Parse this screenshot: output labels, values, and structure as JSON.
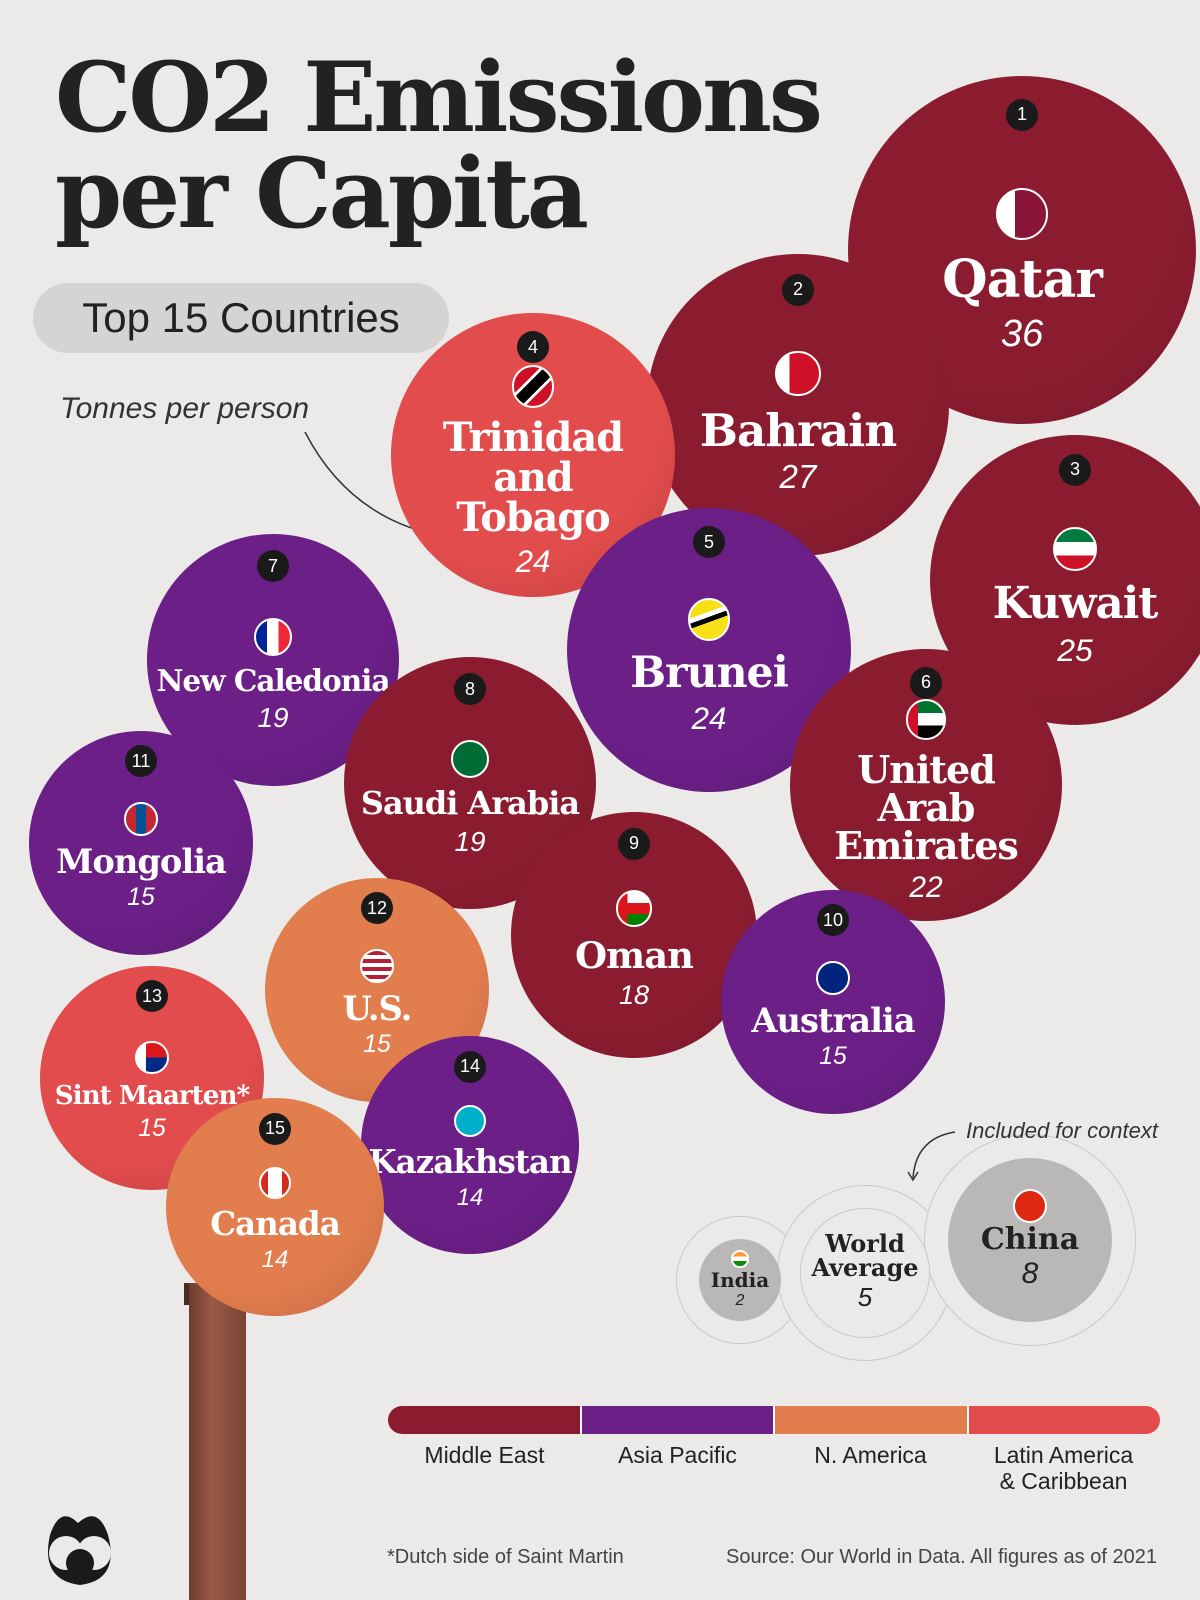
{
  "title_line1": "CO2 Emissions",
  "title_line2": "per Capita",
  "subtitle": "Top 15 Countries",
  "unit_note": "Tonnes per person",
  "context_note": "Included for context",
  "colors": {
    "Middle East": "#8b1c30",
    "Asia Pacific": "#6b1f87",
    "N. America": "#e27d4e",
    "Latin America & Caribbean": "#e24c4c",
    "context": "#b9b8b6",
    "background": "#ebeae8"
  },
  "chart_data": {
    "type": "bubble",
    "unit": "Tonnes per person",
    "countries": [
      {
        "rank": "1",
        "name": "Qatar",
        "value": 36,
        "region": "Middle East",
        "flag": "qatar-flag"
      },
      {
        "rank": "2",
        "name": "Bahrain",
        "value": 27,
        "region": "Middle East",
        "flag": "bahrain-flag"
      },
      {
        "rank": "3",
        "name": "Kuwait",
        "value": 25,
        "region": "Middle East",
        "flag": "kuwait-flag"
      },
      {
        "rank": "4",
        "name": "Trinidad and Tobago",
        "value": 24,
        "region": "Latin America & Caribbean",
        "flag": "trinidad-flag"
      },
      {
        "rank": "5",
        "name": "Brunei",
        "value": 24,
        "region": "Asia Pacific",
        "flag": "brunei-flag"
      },
      {
        "rank": "6",
        "name": "United Arab Emirates",
        "value": 22,
        "region": "Middle East",
        "flag": "uae-flag"
      },
      {
        "rank": "7",
        "name": "New Caledonia",
        "value": 19,
        "region": "Asia Pacific",
        "flag": "france-flag"
      },
      {
        "rank": "8",
        "name": "Saudi Arabia",
        "value": 19,
        "region": "Middle East",
        "flag": "saudi-flag"
      },
      {
        "rank": "9",
        "name": "Oman",
        "value": 18,
        "region": "Middle East",
        "flag": "oman-flag"
      },
      {
        "rank": "10",
        "name": "Australia",
        "value": 15,
        "region": "Asia Pacific",
        "flag": "australia-flag"
      },
      {
        "rank": "11",
        "name": "Mongolia",
        "value": 15,
        "region": "Asia Pacific",
        "flag": "mongolia-flag"
      },
      {
        "rank": "12",
        "name": "U.S.",
        "value": 15,
        "region": "N. America",
        "flag": "us-flag"
      },
      {
        "rank": "13",
        "name": "Sint Maarten*",
        "value": 15,
        "region": "Latin America & Caribbean",
        "flag": "sint-maarten-flag"
      },
      {
        "rank": "14",
        "name": "Kazakhstan",
        "value": 14,
        "region": "Asia Pacific",
        "flag": "kazakhstan-flag"
      },
      {
        "rank": "15",
        "name": "Canada",
        "value": 14,
        "region": "N. America",
        "flag": "canada-flag"
      }
    ],
    "context": [
      {
        "name": "India",
        "value": 2,
        "flag": "india-flag"
      },
      {
        "name": "World Average",
        "value": 5
      },
      {
        "name": "China",
        "value": 8,
        "flag": "china-flag"
      }
    ],
    "legend": [
      "Middle East",
      "Asia Pacific",
      "N. America",
      "Latin America & Caribbean"
    ]
  },
  "legend_labels": [
    "Middle East",
    "Asia Pacific",
    "N. America",
    "Latin America\n& Caribbean"
  ],
  "footnote": "*Dutch side of  Saint Martin",
  "source": "Source: Our World in Data. All figures as of 2021"
}
